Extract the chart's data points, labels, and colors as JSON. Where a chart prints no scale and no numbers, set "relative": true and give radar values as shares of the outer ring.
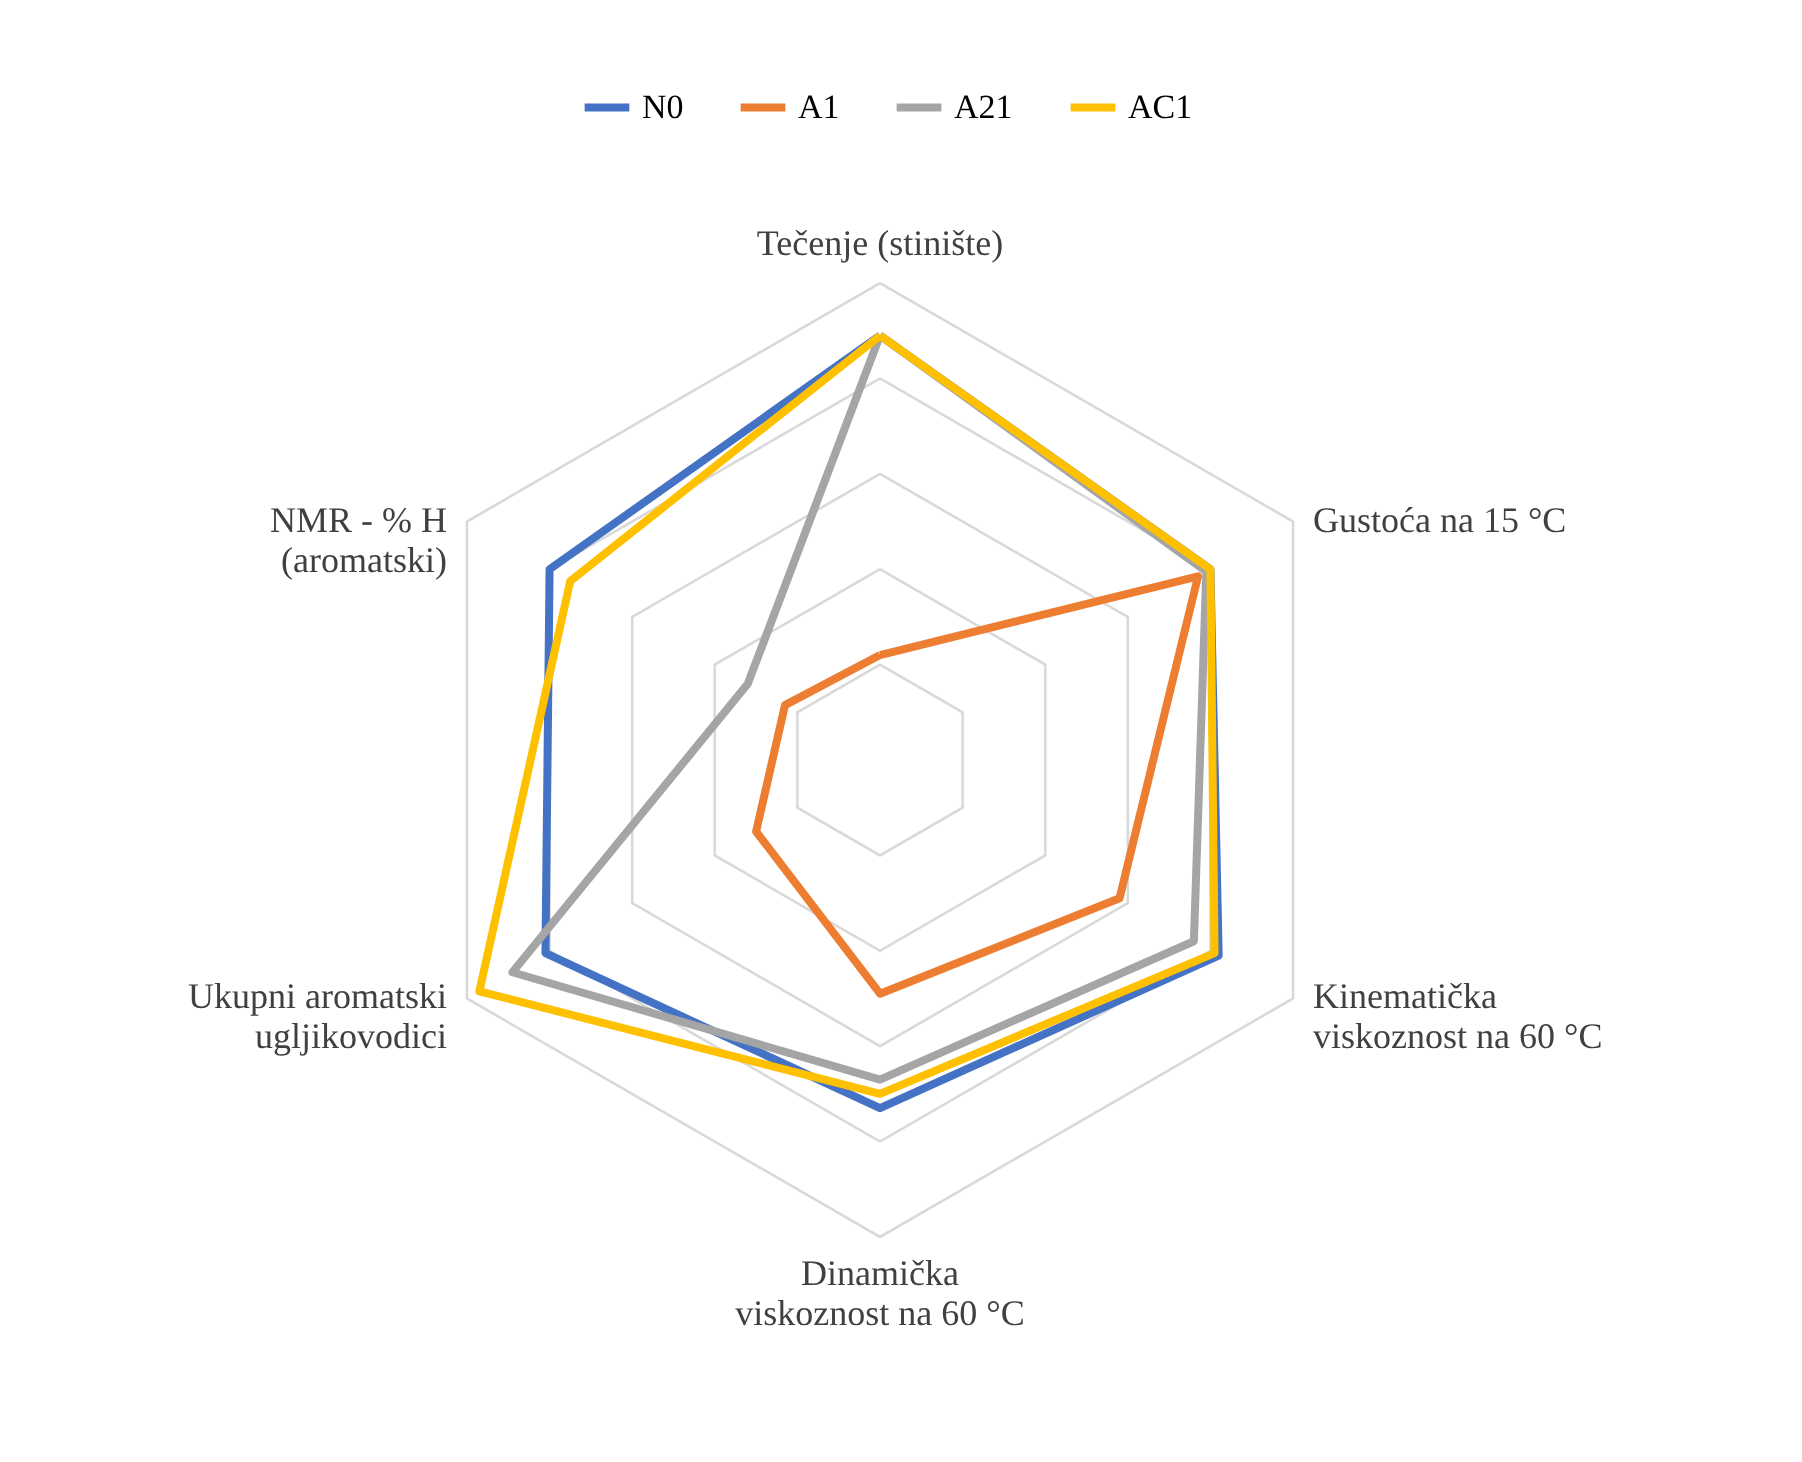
{
  "chart_data": {
    "type": "radar",
    "relative": true,
    "grid": true,
    "legend": "top",
    "categories": [
      "Tečenje (stinište)",
      "Gustoća na 15 °C",
      "Kinematička\nviskoznost na 60 °C",
      "Dinamička\nviskoznost na 60 °C",
      "Ukupni aromatski\nugljikovodici",
      "NMR - % H\n(aromatski)"
    ],
    "series": [
      {
        "name": "N0",
        "color": "#4472c4",
        "values": [
          0.89,
          0.8,
          0.82,
          0.73,
          0.81,
          0.8
        ]
      },
      {
        "name": "A1",
        "color": "#ed7d31",
        "values": [
          0.22,
          0.77,
          0.58,
          0.49,
          0.3,
          0.23
        ]
      },
      {
        "name": "A21",
        "color": "#a5a5a5",
        "values": [
          0.89,
          0.79,
          0.76,
          0.67,
          0.89,
          0.32
        ]
      },
      {
        "name": "AC1",
        "color": "#ffc000",
        "values": [
          0.89,
          0.8,
          0.81,
          0.7,
          0.97,
          0.75
        ]
      }
    ]
  }
}
